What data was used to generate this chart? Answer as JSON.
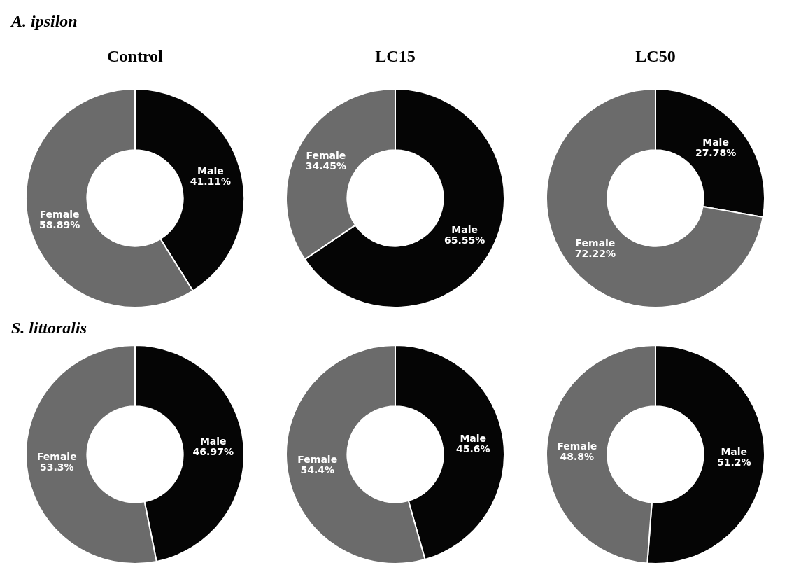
{
  "chart_data": [
    {
      "type": "donut",
      "title": "Control",
      "annotations": [
        "A. ipsilon"
      ],
      "categories": [
        "Male",
        "Female"
      ],
      "values": [
        41.11,
        58.89
      ],
      "value_labels": [
        "41.11%",
        "58.89%"
      ],
      "colors": [
        "#050505",
        "#6b6b6b"
      ]
    },
    {
      "type": "donut",
      "title": "LC15",
      "categories": [
        "Male",
        "Female"
      ],
      "values": [
        65.55,
        34.45
      ],
      "value_labels": [
        "65.55%",
        "34.45%"
      ],
      "colors": [
        "#050505",
        "#6b6b6b"
      ]
    },
    {
      "type": "donut",
      "title": "LC50",
      "categories": [
        "Male",
        "Female"
      ],
      "values": [
        27.78,
        72.22
      ],
      "value_labels": [
        "27.78%",
        "72.22%"
      ],
      "colors": [
        "#050505",
        "#6b6b6b"
      ]
    },
    {
      "type": "donut",
      "annotations": [
        "S. littoralis"
      ],
      "categories": [
        "Male",
        "Female"
      ],
      "values": [
        46.97,
        53.3
      ],
      "value_labels": [
        "46.97%",
        "53.3%"
      ],
      "colors": [
        "#050505",
        "#6b6b6b"
      ]
    },
    {
      "type": "donut",
      "categories": [
        "Male",
        "Female"
      ],
      "values": [
        45.6,
        54.4
      ],
      "value_labels": [
        "45.6%",
        "54.4%"
      ],
      "colors": [
        "#050505",
        "#6b6b6b"
      ]
    },
    {
      "type": "donut",
      "categories": [
        "Male",
        "Female"
      ],
      "values": [
        51.2,
        48.8
      ],
      "value_labels": [
        "51.2%",
        "48.8%"
      ],
      "colors": [
        "#050505",
        "#6b6b6b"
      ]
    }
  ]
}
